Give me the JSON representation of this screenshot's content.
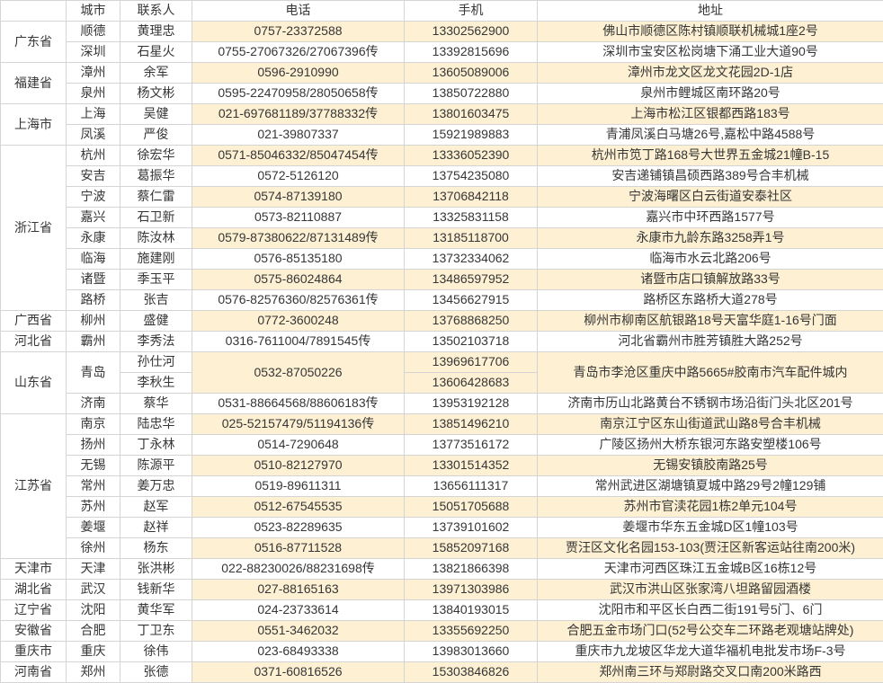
{
  "table": {
    "headers": [
      "",
      "城市",
      "联系人",
      "电话",
      "手机",
      "地址"
    ],
    "groups": [
      {
        "province": "广东省",
        "cities": [
          {
            "city": "顺德",
            "contacts": [
              "黄理忠"
            ],
            "phone": "0757-23372588",
            "mobiles": [
              "13302562900"
            ],
            "address": "佛山市顺德区陈村镇顺联机械城1座2号"
          },
          {
            "city": "深圳",
            "contacts": [
              "石星火"
            ],
            "phone": "0755-27067326/27067396传",
            "mobiles": [
              "13392815696"
            ],
            "address": "深圳市宝安区松岗塘下涌工业大道90号"
          }
        ]
      },
      {
        "province": "福建省",
        "cities": [
          {
            "city": "漳州",
            "contacts": [
              "余军"
            ],
            "phone": "0596-2910990",
            "mobiles": [
              "13605089006"
            ],
            "address": "漳州市龙文区龙文花园2D-1店"
          },
          {
            "city": "泉州",
            "contacts": [
              "杨文彬"
            ],
            "phone": "0595-22470958/28050658传",
            "mobiles": [
              "13850722880"
            ],
            "address": "泉州市鲤城区南环路20号"
          }
        ]
      },
      {
        "province": "上海市",
        "cities": [
          {
            "city": "上海",
            "contacts": [
              "吴健"
            ],
            "phone": "021-697681189/37788332传",
            "mobiles": [
              "13801603475"
            ],
            "address": "上海市松江区银都西路183号"
          },
          {
            "city": "凤溪",
            "contacts": [
              "严俊"
            ],
            "phone": "021-39807337",
            "mobiles": [
              "15921989883"
            ],
            "address": "青浦凤溪白马塘26号,嘉松中路4588号"
          }
        ]
      },
      {
        "province": "浙江省",
        "cities": [
          {
            "city": "杭州",
            "contacts": [
              "徐宏华"
            ],
            "phone": "0571-85046332/85047454传",
            "mobiles": [
              "13336052390"
            ],
            "address": "杭州市笕丁路168号大世界五金城21幢B-15"
          },
          {
            "city": "安吉",
            "contacts": [
              "葛振华"
            ],
            "phone": "0572-5126120",
            "mobiles": [
              "13754235080"
            ],
            "address": "安吉递铺镇昌硕西路389号合丰机械"
          },
          {
            "city": "宁波",
            "contacts": [
              "蔡仁雷"
            ],
            "phone": "0574-87139180",
            "mobiles": [
              "13706842118"
            ],
            "address": "宁波海曙区白云街道安泰社区"
          },
          {
            "city": "嘉兴",
            "contacts": [
              "石卫新"
            ],
            "phone": "0573-82110887",
            "mobiles": [
              "13325831158"
            ],
            "address": "嘉兴市中环西路1577号"
          },
          {
            "city": "永康",
            "contacts": [
              "陈汝林"
            ],
            "phone": "0579-87380622/87131489传",
            "mobiles": [
              "13185118700"
            ],
            "address": "永康市九龄东路3258弄1号"
          },
          {
            "city": "临海",
            "contacts": [
              "施建刚"
            ],
            "phone": "0576-85135180",
            "mobiles": [
              "13732334062"
            ],
            "address": "临海市水云北路206号"
          },
          {
            "city": "诸暨",
            "contacts": [
              "季玉平"
            ],
            "phone": "0575-86024864",
            "mobiles": [
              "13486597952"
            ],
            "address": "诸暨市店口镇解放路33号"
          },
          {
            "city": "路桥",
            "contacts": [
              "张吉"
            ],
            "phone": "0576-82576360/82576361传",
            "mobiles": [
              "13456627915"
            ],
            "address": "路桥区东路桥大道278号"
          }
        ]
      },
      {
        "province": "广西省",
        "cities": [
          {
            "city": "柳州",
            "contacts": [
              "盛健"
            ],
            "phone": "0772-3600248",
            "mobiles": [
              "13768868250"
            ],
            "address": "柳州市柳南区航银路18号天富华庭1-16号门面"
          }
        ]
      },
      {
        "province": "河北省",
        "cities": [
          {
            "city": "霸州",
            "contacts": [
              "李秀法"
            ],
            "phone": "0316-7611004/7891545传",
            "mobiles": [
              "13502103718"
            ],
            "address": "河北省霸州市胜芳镇胜大路252号"
          }
        ]
      },
      {
        "province": "山东省",
        "cities": [
          {
            "city": "青岛",
            "contacts": [
              "孙仕河",
              "李秋生"
            ],
            "phone": "0532-87050226",
            "mobiles": [
              "13969617706",
              "13606428683"
            ],
            "address": "青岛市李沧区重庆中路5665#胶南市汽车配件城内"
          },
          {
            "city": "济南",
            "contacts": [
              "蔡华"
            ],
            "phone": "0531-88664568/88606183传",
            "mobiles": [
              "13953192128"
            ],
            "address": "济南市历山北路黄台不锈钢市场沿街门头北区201号"
          }
        ]
      },
      {
        "province": "江苏省",
        "cities": [
          {
            "city": "南京",
            "contacts": [
              "陆忠华"
            ],
            "phone": "025-52157479/51194136传",
            "mobiles": [
              "13851496210"
            ],
            "address": "南京江宁区东山街道武山路8号合丰机械"
          },
          {
            "city": "扬州",
            "contacts": [
              "丁永林"
            ],
            "phone": "0514-7290648",
            "mobiles": [
              "13773516172"
            ],
            "address": "广陵区扬州大桥东银河东路安塑楼106号"
          },
          {
            "city": "无锡",
            "contacts": [
              "陈源平"
            ],
            "phone": "0510-82127970",
            "mobiles": [
              "13301514352"
            ],
            "address": "无锡安镇胶南路25号"
          },
          {
            "city": "常州",
            "contacts": [
              "姜万忠"
            ],
            "phone": "0519-89611311",
            "mobiles": [
              "13656111317"
            ],
            "address": "常州武进区湖塘镇夏城中路29号2幢129铺"
          },
          {
            "city": "苏州",
            "contacts": [
              "赵军"
            ],
            "phone": "0512-67545535",
            "mobiles": [
              "15051705688"
            ],
            "address": "苏州市官渎花园1栋2单元104号"
          },
          {
            "city": "姜堰",
            "contacts": [
              "赵祥"
            ],
            "phone": "0523-82289635",
            "mobiles": [
              "13739101602"
            ],
            "address": "姜堰市华东五金城D区1幢103号"
          },
          {
            "city": "徐州",
            "contacts": [
              "杨东"
            ],
            "phone": "0516-87711528",
            "mobiles": [
              "15852097168"
            ],
            "address": "贾汪区文化名园153-103(贾汪区新客运站往南200米)"
          }
        ]
      },
      {
        "province": "天津市",
        "cities": [
          {
            "city": "天津",
            "contacts": [
              "张洪彬"
            ],
            "phone": "022-88230026/88231698传",
            "mobiles": [
              "13821866398"
            ],
            "address": "天津市河西区珠江五金城B区16栋12号"
          }
        ]
      },
      {
        "province": "湖北省",
        "cities": [
          {
            "city": "武汉",
            "contacts": [
              "钱新华"
            ],
            "phone": "027-88165163",
            "mobiles": [
              "13971303986"
            ],
            "address": "武汉市洪山区张家湾八坦路留园酒楼"
          }
        ]
      },
      {
        "province": "辽宁省",
        "cities": [
          {
            "city": "沈阳",
            "contacts": [
              "黄华军"
            ],
            "phone": "024-23733614",
            "mobiles": [
              "13840193015"
            ],
            "address": "沈阳市和平区长白西二街191号5门、6门"
          }
        ]
      },
      {
        "province": "安徽省",
        "cities": [
          {
            "city": "合肥",
            "contacts": [
              "丁卫东"
            ],
            "phone": "0551-3462032",
            "mobiles": [
              "13355692250"
            ],
            "address": "合肥五金市场门口(52号公交车二环路老观塘站牌处)"
          }
        ]
      },
      {
        "province": "重庆市",
        "cities": [
          {
            "city": "重庆",
            "contacts": [
              "徐伟"
            ],
            "phone": "023-68493338",
            "mobiles": [
              "13983013660"
            ],
            "address": "重庆市九龙坡区华龙大道华福机电批发市场F-3号"
          }
        ]
      },
      {
        "province": "河南省",
        "cities": [
          {
            "city": "郑州",
            "contacts": [
              "张德"
            ],
            "phone": "0371-60816526",
            "mobiles": [
              "15303846826"
            ],
            "address": "郑州南三环与郑尉路交叉口南200米路西"
          }
        ]
      }
    ]
  },
  "colors": {
    "row_shade": "#fdf0d3",
    "border": "#d4d4d4",
    "text": "#363636",
    "background": "#ffffff"
  }
}
